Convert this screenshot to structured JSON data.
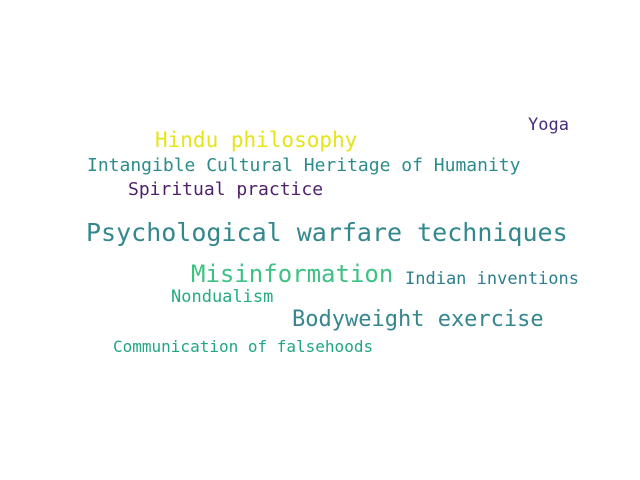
{
  "word_cloud": {
    "words": [
      {
        "text": "Hindu philosophy",
        "color": "#e5e419"
      },
      {
        "text": "Intangible Cultural Heritage of Humanity",
        "color": "#2c8c8c"
      },
      {
        "text": "Spiritual practice",
        "color": "#4f1f6b"
      },
      {
        "text": "Yoga",
        "color": "#472d7b"
      },
      {
        "text": "Psychological warfare techniques",
        "color": "#33888d"
      },
      {
        "text": "Misinformation",
        "color": "#3ec184"
      },
      {
        "text": "Indian inventions",
        "color": "#2d7f8e"
      },
      {
        "text": "Nondualism",
        "color": "#25ab82"
      },
      {
        "text": "Bodyweight exercise",
        "color": "#36868e"
      },
      {
        "text": "Communication of falsehoods",
        "color": "#21a586"
      }
    ]
  }
}
